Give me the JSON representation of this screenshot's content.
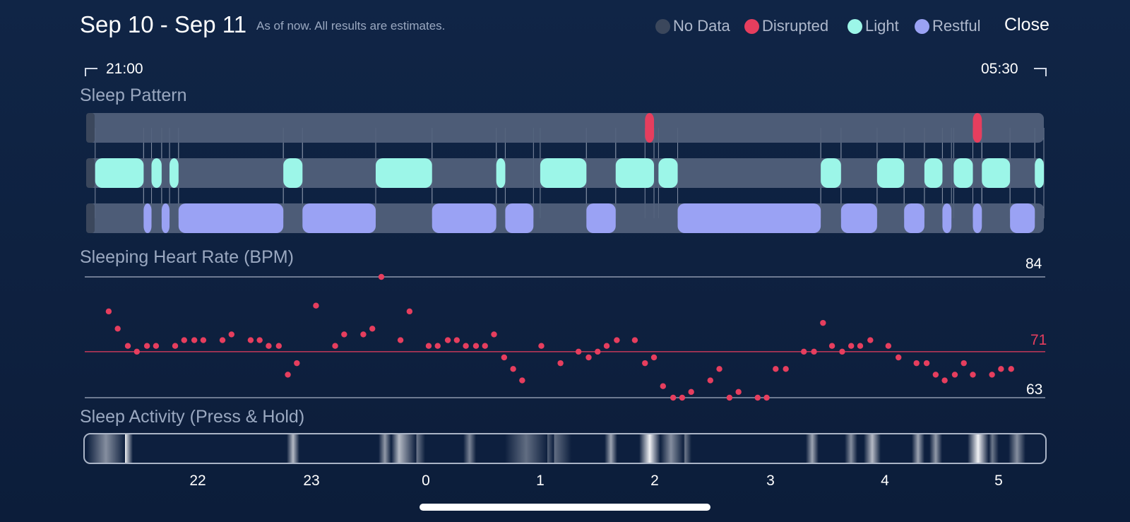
{
  "header": {
    "title": "Sep 10 - Sep 11",
    "subtitle": "As of now. All results are estimates.",
    "close_label": "Close"
  },
  "legend": [
    {
      "label": "No Data",
      "color": "#3b475c"
    },
    {
      "label": "Disrupted",
      "color": "#e63e5e"
    },
    {
      "label": "Light",
      "color": "#9cf6e8"
    },
    {
      "label": "Restful",
      "color": "#9aa2f4"
    }
  ],
  "time_range": {
    "start": "21:00",
    "end": "05:30"
  },
  "sections": {
    "sleep_pattern": "Sleep Pattern",
    "heart_rate": "Sleeping Heart Rate (BPM)",
    "activity": "Sleep Activity (Press & Hold)"
  },
  "heart_rate_axis": {
    "max_label": "84",
    "avg_label": "71",
    "min_label": "63"
  },
  "x_ticks": [
    "22",
    "23",
    "0",
    "1",
    "2",
    "3",
    "4",
    "5"
  ],
  "colors": {
    "background": "#0e2142",
    "track": "#52627c",
    "disrupted": "#e63e5e",
    "light": "#9cf6e8",
    "restful": "#9aa2f4",
    "hr_dot": "#e63e5e"
  },
  "chart_data": [
    {
      "type": "timeline",
      "title": "Sleep Pattern",
      "x_unit": "hours since 21:00",
      "x_range": [
        0,
        8.5
      ],
      "rows": [
        {
          "name": "Disrupted",
          "segments": [
            [
              4.96,
              5.04
            ],
            [
              7.87,
              7.95
            ]
          ]
        },
        {
          "name": "Light",
          "segments": [
            [
              0.08,
              0.51
            ],
            [
              0.58,
              0.67
            ],
            [
              0.74,
              0.82
            ],
            [
              1.75,
              1.92
            ],
            [
              2.57,
              3.07
            ],
            [
              3.64,
              3.72
            ],
            [
              4.03,
              4.44
            ],
            [
              4.7,
              5.04
            ],
            [
              5.08,
              5.25
            ],
            [
              6.52,
              6.7
            ],
            [
              7.02,
              7.26
            ],
            [
              7.44,
              7.6
            ],
            [
              7.7,
              7.87
            ],
            [
              7.95,
              8.2
            ],
            [
              8.42,
              8.5
            ]
          ]
        },
        {
          "name": "Restful",
          "segments": [
            [
              0.51,
              0.58
            ],
            [
              0.67,
              0.74
            ],
            [
              0.82,
              1.75
            ],
            [
              1.92,
              2.57
            ],
            [
              3.07,
              3.64
            ],
            [
              3.72,
              3.97
            ],
            [
              4.44,
              4.7
            ],
            [
              5.25,
              6.52
            ],
            [
              6.7,
              7.02
            ],
            [
              7.26,
              7.44
            ],
            [
              7.6,
              7.68
            ],
            [
              7.87,
              7.95
            ],
            [
              8.2,
              8.42
            ]
          ]
        }
      ]
    },
    {
      "type": "scatter",
      "title": "Sleeping Heart Rate (BPM)",
      "x_unit": "hours since 21:00",
      "x_range": [
        0,
        8.5
      ],
      "ylim": [
        63,
        84
      ],
      "reference_lines": [
        {
          "label": "84",
          "value": 84
        },
        {
          "label": "71",
          "value": 71
        },
        {
          "label": "63",
          "value": 63
        }
      ],
      "x": [
        0.2,
        0.28,
        0.37,
        0.45,
        0.54,
        0.62,
        0.79,
        0.87,
        0.96,
        1.04,
        1.21,
        1.29,
        1.46,
        1.54,
        1.62,
        1.71,
        1.79,
        1.87,
        2.04,
        2.21,
        2.29,
        2.46,
        2.54,
        2.62,
        2.79,
        2.87,
        3.04,
        3.12,
        3.21,
        3.29,
        3.37,
        3.46,
        3.54,
        3.62,
        3.71,
        3.79,
        3.87,
        4.04,
        4.21,
        4.37,
        4.46,
        4.54,
        4.62,
        4.71,
        4.87,
        4.96,
        5.04,
        5.12,
        5.21,
        5.29,
        5.37,
        5.54,
        5.62,
        5.71,
        5.79,
        5.96,
        6.04,
        6.12,
        6.21,
        6.37,
        6.46,
        6.54,
        6.62,
        6.71,
        6.79,
        6.87,
        6.96,
        7.12,
        7.21,
        7.37,
        7.46,
        7.54,
        7.62,
        7.71,
        7.79,
        7.87,
        8.04,
        8.12,
        8.21
      ],
      "y": [
        78,
        75,
        72,
        71,
        72,
        72,
        72,
        73,
        73,
        73,
        73,
        74,
        73,
        73,
        72,
        72,
        67,
        69,
        79,
        72,
        74,
        74,
        75,
        84,
        73,
        78,
        72,
        72,
        73,
        73,
        72,
        72,
        72,
        74,
        70,
        68,
        66,
        72,
        69,
        71,
        70,
        71,
        72,
        73,
        73,
        69,
        70,
        65,
        63,
        63,
        64,
        66,
        68,
        63,
        64,
        63,
        63,
        68,
        68,
        71,
        71,
        76,
        72,
        71,
        72,
        72,
        73,
        72,
        70,
        69,
        69,
        67,
        66,
        67,
        69,
        67,
        67,
        68,
        68
      ]
    }
  ]
}
